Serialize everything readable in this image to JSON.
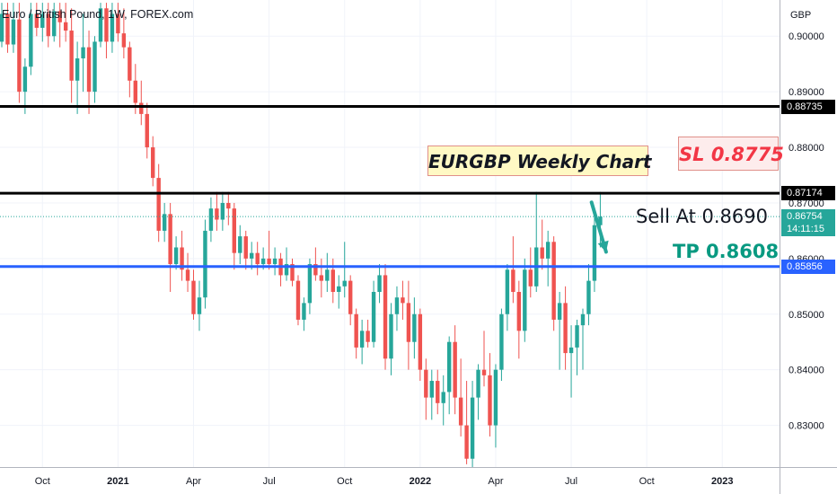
{
  "header": {
    "title": "Euro / British Pound, 1W, FOREX.com"
  },
  "colors": {
    "up": "#26a69a",
    "down": "#ef5350",
    "support": "#2962ff",
    "resistance": "#000000",
    "tp": "#089981",
    "sl": "#f23645"
  },
  "annotations": {
    "title_box": "EURGBP Weekly Chart",
    "sl": "SL 0.8775",
    "sell": "Sell At 0.8690",
    "tp": "TP 0.8608"
  },
  "price_tags": {
    "upper_resistance": "0.88735",
    "lower_resistance": "0.87174",
    "last_price": "0.86754",
    "countdown": "14:11:15",
    "support": "0.85856"
  },
  "chart_data": {
    "type": "candlestick",
    "title": "Euro / British Pound, 1W, FOREX.com",
    "currency_label": "GBP",
    "ylim": [
      0.8225,
      0.9065
    ],
    "y_ticks": [
      "0.90000",
      "0.89000",
      "0.88000",
      "0.87000",
      "0.86000",
      "0.85000",
      "0.84000",
      "0.83000"
    ],
    "x_ticks": [
      {
        "label": "Oct",
        "week": 7
      },
      {
        "label": "2021",
        "week": 20,
        "year": true
      },
      {
        "label": "Apr",
        "week": 33
      },
      {
        "label": "Jul",
        "week": 46
      },
      {
        "label": "Oct",
        "week": 59
      },
      {
        "label": "2022",
        "week": 72,
        "year": true
      },
      {
        "label": "Apr",
        "week": 85
      },
      {
        "label": "Jul",
        "week": 98
      },
      {
        "label": "Oct",
        "week": 111
      },
      {
        "label": "2023",
        "week": 124,
        "year": true
      }
    ],
    "horizontal_lines": [
      {
        "price": 0.88735,
        "role": "resistance"
      },
      {
        "price": 0.87174,
        "role": "resistance"
      },
      {
        "price": 0.85856,
        "role": "support"
      }
    ],
    "last_price": 0.86754,
    "arrow": {
      "from_week": 101.5,
      "from_price": 0.8701,
      "to_week": 104,
      "to_price": 0.8612
    },
    "candles": [
      [
        0.899,
        0.906,
        0.898,
        0.904
      ],
      [
        0.904,
        0.906,
        0.897,
        0.8985
      ],
      [
        0.8985,
        0.906,
        0.897,
        0.903
      ],
      [
        0.903,
        0.906,
        0.888,
        0.89
      ],
      [
        0.89,
        0.896,
        0.886,
        0.8945
      ],
      [
        0.8945,
        0.906,
        0.893,
        0.904
      ],
      [
        0.904,
        0.906,
        0.9,
        0.9015
      ],
      [
        0.9015,
        0.906,
        0.899,
        0.904
      ],
      [
        0.904,
        0.906,
        0.898,
        0.9
      ],
      [
        0.9,
        0.906,
        0.899,
        0.9045
      ],
      [
        0.9045,
        0.906,
        0.898,
        0.9025
      ],
      [
        0.9025,
        0.906,
        0.899,
        0.901
      ],
      [
        0.901,
        0.905,
        0.888,
        0.892
      ],
      [
        0.892,
        0.899,
        0.886,
        0.896
      ],
      [
        0.896,
        0.904,
        0.89,
        0.898
      ],
      [
        0.898,
        0.901,
        0.886,
        0.89
      ],
      [
        0.89,
        0.9,
        0.888,
        0.899
      ],
      [
        0.899,
        0.906,
        0.898,
        0.905
      ],
      [
        0.905,
        0.906,
        0.896,
        0.899
      ],
      [
        0.899,
        0.906,
        0.897,
        0.904
      ],
      [
        0.904,
        0.906,
        0.899,
        0.9005
      ],
      [
        0.9005,
        0.905,
        0.896,
        0.898
      ],
      [
        0.898,
        0.899,
        0.889,
        0.892
      ],
      [
        0.892,
        0.895,
        0.886,
        0.888
      ],
      [
        0.888,
        0.892,
        0.884,
        0.886
      ],
      [
        0.886,
        0.888,
        0.878,
        0.88
      ],
      [
        0.88,
        0.882,
        0.873,
        0.8745
      ],
      [
        0.8745,
        0.877,
        0.863,
        0.865
      ],
      [
        0.865,
        0.87,
        0.863,
        0.868
      ],
      [
        0.868,
        0.87,
        0.854,
        0.859
      ],
      [
        0.859,
        0.864,
        0.858,
        0.862
      ],
      [
        0.862,
        0.865,
        0.856,
        0.858
      ],
      [
        0.858,
        0.861,
        0.854,
        0.856
      ],
      [
        0.856,
        0.858,
        0.849,
        0.85
      ],
      [
        0.85,
        0.856,
        0.847,
        0.853
      ],
      [
        0.853,
        0.867,
        0.851,
        0.865
      ],
      [
        0.865,
        0.871,
        0.863,
        0.869
      ],
      [
        0.869,
        0.872,
        0.865,
        0.867
      ],
      [
        0.867,
        0.872,
        0.865,
        0.87
      ],
      [
        0.87,
        0.872,
        0.866,
        0.869
      ],
      [
        0.869,
        0.87,
        0.858,
        0.861
      ],
      [
        0.861,
        0.866,
        0.859,
        0.864
      ],
      [
        0.864,
        0.865,
        0.858,
        0.86
      ],
      [
        0.86,
        0.863,
        0.858,
        0.861
      ],
      [
        0.861,
        0.863,
        0.857,
        0.859
      ],
      [
        0.859,
        0.862,
        0.858,
        0.86
      ],
      [
        0.86,
        0.865,
        0.858,
        0.859
      ],
      [
        0.859,
        0.862,
        0.857,
        0.86
      ],
      [
        0.86,
        0.861,
        0.855,
        0.857
      ],
      [
        0.857,
        0.862,
        0.856,
        0.859
      ],
      [
        0.859,
        0.86,
        0.855,
        0.856
      ],
      [
        0.856,
        0.857,
        0.848,
        0.849
      ],
      [
        0.849,
        0.853,
        0.847,
        0.852
      ],
      [
        0.852,
        0.86,
        0.85,
        0.859
      ],
      [
        0.859,
        0.862,
        0.856,
        0.857
      ],
      [
        0.857,
        0.86,
        0.853,
        0.856
      ],
      [
        0.856,
        0.861,
        0.854,
        0.858
      ],
      [
        0.858,
        0.86,
        0.852,
        0.854
      ],
      [
        0.854,
        0.857,
        0.851,
        0.855
      ],
      [
        0.855,
        0.863,
        0.853,
        0.856
      ],
      [
        0.856,
        0.857,
        0.848,
        0.85
      ],
      [
        0.85,
        0.851,
        0.842,
        0.844
      ],
      [
        0.844,
        0.849,
        0.841,
        0.847
      ],
      [
        0.847,
        0.849,
        0.844,
        0.845
      ],
      [
        0.845,
        0.856,
        0.844,
        0.854
      ],
      [
        0.854,
        0.859,
        0.852,
        0.857
      ],
      [
        0.857,
        0.859,
        0.84,
        0.842
      ],
      [
        0.842,
        0.852,
        0.839,
        0.85
      ],
      [
        0.85,
        0.855,
        0.847,
        0.853
      ],
      [
        0.853,
        0.856,
        0.849,
        0.852
      ],
      [
        0.852,
        0.856,
        0.84,
        0.845
      ],
      [
        0.845,
        0.853,
        0.842,
        0.85
      ],
      [
        0.85,
        0.851,
        0.838,
        0.84
      ],
      [
        0.84,
        0.842,
        0.831,
        0.835
      ],
      [
        0.835,
        0.84,
        0.831,
        0.838
      ],
      [
        0.838,
        0.84,
        0.832,
        0.834
      ],
      [
        0.834,
        0.839,
        0.83,
        0.836
      ],
      [
        0.836,
        0.846,
        0.832,
        0.845
      ],
      [
        0.845,
        0.848,
        0.832,
        0.835
      ],
      [
        0.835,
        0.842,
        0.828,
        0.83
      ],
      [
        0.83,
        0.838,
        0.823,
        0.824
      ],
      [
        0.824,
        0.838,
        0.8225,
        0.835
      ],
      [
        0.835,
        0.841,
        0.831,
        0.84
      ],
      [
        0.84,
        0.847,
        0.837,
        0.839
      ],
      [
        0.839,
        0.843,
        0.828,
        0.83
      ],
      [
        0.83,
        0.841,
        0.826,
        0.84
      ],
      [
        0.84,
        0.851,
        0.838,
        0.85
      ],
      [
        0.85,
        0.859,
        0.847,
        0.858
      ],
      [
        0.858,
        0.864,
        0.852,
        0.854
      ],
      [
        0.854,
        0.856,
        0.842,
        0.847
      ],
      [
        0.847,
        0.86,
        0.845,
        0.858
      ],
      [
        0.858,
        0.862,
        0.853,
        0.855
      ],
      [
        0.855,
        0.872,
        0.854,
        0.862
      ],
      [
        0.862,
        0.867,
        0.858,
        0.86
      ],
      [
        0.86,
        0.865,
        0.855,
        0.863
      ],
      [
        0.863,
        0.864,
        0.847,
        0.849
      ],
      [
        0.849,
        0.854,
        0.84,
        0.852
      ],
      [
        0.852,
        0.855,
        0.84,
        0.843
      ],
      [
        0.843,
        0.848,
        0.835,
        0.844
      ],
      [
        0.844,
        0.849,
        0.839,
        0.848
      ],
      [
        0.848,
        0.851,
        0.84,
        0.85
      ],
      [
        0.85,
        0.859,
        0.848,
        0.856
      ],
      [
        0.856,
        0.868,
        0.854,
        0.866
      ],
      [
        0.866,
        0.872,
        0.862,
        0.86754
      ]
    ]
  }
}
